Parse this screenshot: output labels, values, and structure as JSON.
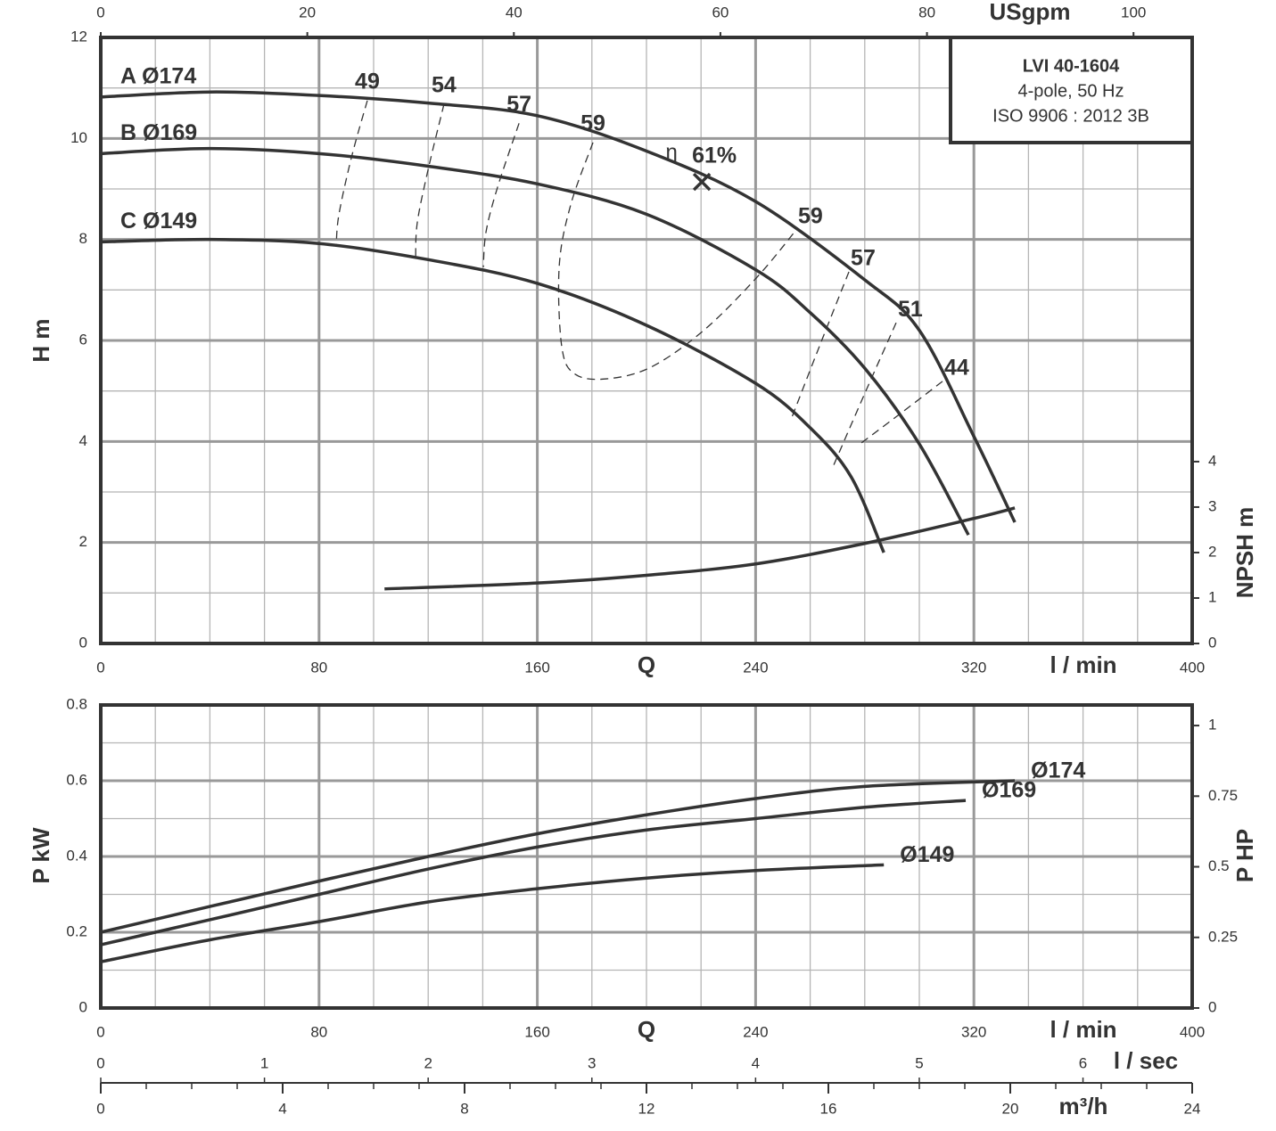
{
  "chart_data": [
    {
      "type": "line",
      "info": [
        "LVI 40-1604",
        "4-pole, 50 Hz",
        "ISO 9906 : 2012 3B"
      ],
      "xlabel": "Q",
      "xunit": "l / min",
      "xlim": [
        0,
        400
      ],
      "xticks": [
        0,
        80,
        160,
        240,
        320,
        400
      ],
      "x2label": "USgpm",
      "x2lim": [
        0,
        105.68
      ],
      "x2ticks": [
        0,
        20,
        40,
        60,
        80,
        100
      ],
      "ylabel": "H m",
      "ylim": [
        0,
        12
      ],
      "yticks": [
        0,
        2,
        4,
        6,
        8,
        10,
        12
      ],
      "y2label": "NPSH m",
      "y2lim": [
        0,
        13.33
      ],
      "y2ticks": [
        0,
        1,
        2,
        3,
        4
      ],
      "grid": true,
      "minor_grid": {
        "x": 20,
        "y": 1
      },
      "series": [
        {
          "name": "A Ø174",
          "color": "#333333",
          "x": [
            0,
            40,
            80,
            120,
            160,
            200,
            240,
            280,
            300,
            320,
            335
          ],
          "values": [
            10.82,
            10.92,
            10.85,
            10.7,
            10.45,
            9.75,
            8.75,
            7.2,
            6.2,
            4.1,
            2.4
          ]
        },
        {
          "name": "B Ø169",
          "color": "#333333",
          "x": [
            0,
            40,
            80,
            120,
            160,
            200,
            240,
            260,
            280,
            300,
            318
          ],
          "values": [
            9.7,
            9.8,
            9.7,
            9.45,
            9.1,
            8.5,
            7.4,
            6.55,
            5.45,
            3.95,
            2.15
          ]
        },
        {
          "name": "C Ø149",
          "color": "#333333",
          "x": [
            0,
            40,
            80,
            120,
            160,
            200,
            240,
            260,
            275,
            287
          ],
          "values": [
            7.95,
            8.0,
            7.92,
            7.6,
            7.13,
            6.3,
            5.15,
            4.27,
            3.3,
            1.8
          ]
        },
        {
          "color": "#333333",
          "axis": "y2",
          "x": [
            104,
            160,
            200,
            240,
            280,
            320,
            335
          ],
          "values": [
            1.2,
            1.33,
            1.5,
            1.75,
            2.2,
            2.75,
            2.98
          ]
        }
      ],
      "efficiency_lines": [
        {
          "eta": 49,
          "x": [
            97.7,
            92,
            87.3,
            86.3
          ],
          "y": [
            10.75,
            9.65,
            8.5,
            7.89
          ]
        },
        {
          "eta": 54,
          "x": [
            125.8,
            120,
            116,
            115.4
          ],
          "y": [
            10.68,
            9.39,
            8.33,
            7.62
          ]
        },
        {
          "eta": 57,
          "x": [
            153.3,
            145.4,
            141.2,
            140.2
          ],
          "y": [
            10.3,
            9.03,
            8.15,
            7.45
          ]
        },
        {
          "eta": 59,
          "x": [
            180.4,
            172.2,
            168,
            169,
            173.9,
            185.3,
            201.6,
            221.2,
            240.8,
            254.9
          ],
          "y": [
            9.92,
            8.68,
            7.45,
            5.86,
            5.33,
            5.24,
            5.47,
            6.21,
            7.27,
            8.19
          ]
        },
        {
          "eta": 57,
          "x": [
            274.2,
            263.5,
            253.3
          ],
          "y": [
            7.36,
            5.9,
            4.48
          ]
        },
        {
          "eta": 51,
          "x": [
            291.5,
            280,
            268.6
          ],
          "y": [
            6.35,
            4.95,
            3.53
          ]
        },
        {
          "eta": 44,
          "x": [
            308.5,
            293,
            277.5
          ],
          "y": [
            5.19,
            4.55,
            3.92
          ]
        }
      ],
      "bep": {
        "x": 220.3,
        "y": 9.14,
        "symbol": "η",
        "label": "61%"
      }
    },
    {
      "type": "line",
      "xlabel": "Q",
      "xunit": "l / min",
      "xlim": [
        0,
        400
      ],
      "xticks": [
        0,
        80,
        160,
        240,
        320,
        400
      ],
      "ylabel": "P kW",
      "ylim": [
        0,
        0.8
      ],
      "yticks": [
        0,
        0.2,
        0.4,
        0.6,
        0.8
      ],
      "y2label": "P HP",
      "y2lim": [
        0,
        1.0728
      ],
      "y2ticks": [
        0,
        0.25,
        0.5,
        0.75,
        1
      ],
      "grid": true,
      "minor_grid": {
        "x": 20,
        "y": 0.1
      },
      "x3": {
        "label": "l / sec",
        "lim": [
          0,
          6.667
        ],
        "ticks": [
          0,
          1,
          2,
          3,
          4,
          5,
          6
        ]
      },
      "x4": {
        "label": "m³/h",
        "lim": [
          0,
          24
        ],
        "ticks": [
          0,
          4,
          8,
          12,
          16,
          20,
          24
        ],
        "minor_step": 1
      },
      "series": [
        {
          "name": "Ø174",
          "color": "#333333",
          "x": [
            0,
            40,
            80,
            120,
            160,
            200,
            240,
            280,
            335
          ],
          "values": [
            0.2,
            0.268,
            0.335,
            0.4,
            0.46,
            0.51,
            0.553,
            0.585,
            0.6
          ]
        },
        {
          "name": "Ø169",
          "color": "#333333",
          "x": [
            0,
            40,
            80,
            120,
            160,
            200,
            240,
            280,
            317
          ],
          "values": [
            0.167,
            0.233,
            0.3,
            0.367,
            0.425,
            0.47,
            0.5,
            0.53,
            0.548
          ]
        },
        {
          "name": "Ø149",
          "color": "#333333",
          "x": [
            0,
            40,
            80,
            120,
            160,
            200,
            240,
            287
          ],
          "values": [
            0.122,
            0.18,
            0.228,
            0.28,
            0.315,
            0.343,
            0.363,
            0.378
          ]
        }
      ]
    }
  ]
}
